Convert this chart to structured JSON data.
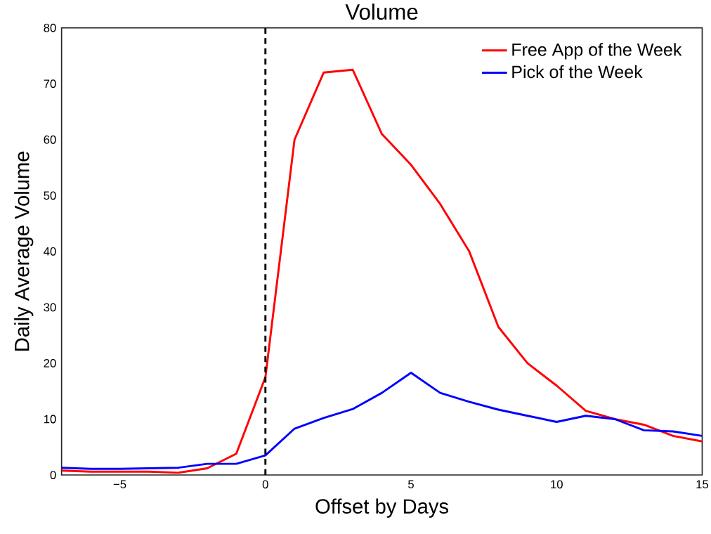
{
  "chart_data": {
    "type": "line",
    "title": "Volume",
    "xlabel": "Offset by Days",
    "ylabel": "Daily Average Volume",
    "x": [
      -7,
      -6,
      -5,
      -4,
      -3,
      -2,
      -1,
      0,
      1,
      2,
      3,
      4,
      5,
      6,
      7,
      8,
      9,
      10,
      11,
      12,
      13,
      14,
      15
    ],
    "series": [
      {
        "name": "Free App of the Week",
        "color": "#ff0000",
        "values": [
          0.8,
          0.6,
          0.6,
          0.6,
          0.4,
          1.2,
          3.8,
          17.5,
          60,
          72,
          72.5,
          61,
          55.5,
          48.5,
          40,
          26.5,
          20,
          16,
          11.5,
          10,
          9,
          7,
          6
        ]
      },
      {
        "name": "Pick of the Week",
        "color": "#0000ff",
        "values": [
          1.3,
          1.1,
          1.1,
          1.2,
          1.3,
          2,
          2,
          3.5,
          8.3,
          10.2,
          11.8,
          14.7,
          18.3,
          14.7,
          13.1,
          11.7,
          10.6,
          9.5,
          10.6,
          10,
          8,
          7.8,
          7
        ]
      }
    ],
    "xlim": [
      -7,
      15
    ],
    "ylim": [
      0,
      80
    ],
    "xticks": [
      {
        "value": -5,
        "label": "−5"
      },
      0,
      5,
      10,
      15
    ],
    "yticks": [
      0,
      10,
      20,
      30,
      40,
      50,
      60,
      70,
      80
    ],
    "ref_lines": [
      {
        "axis": "x",
        "value": 0,
        "color": "#000000",
        "line_style": "dashed"
      }
    ],
    "grid": false,
    "legend": "top right",
    "marker": "none",
    "line_style": "solid"
  }
}
